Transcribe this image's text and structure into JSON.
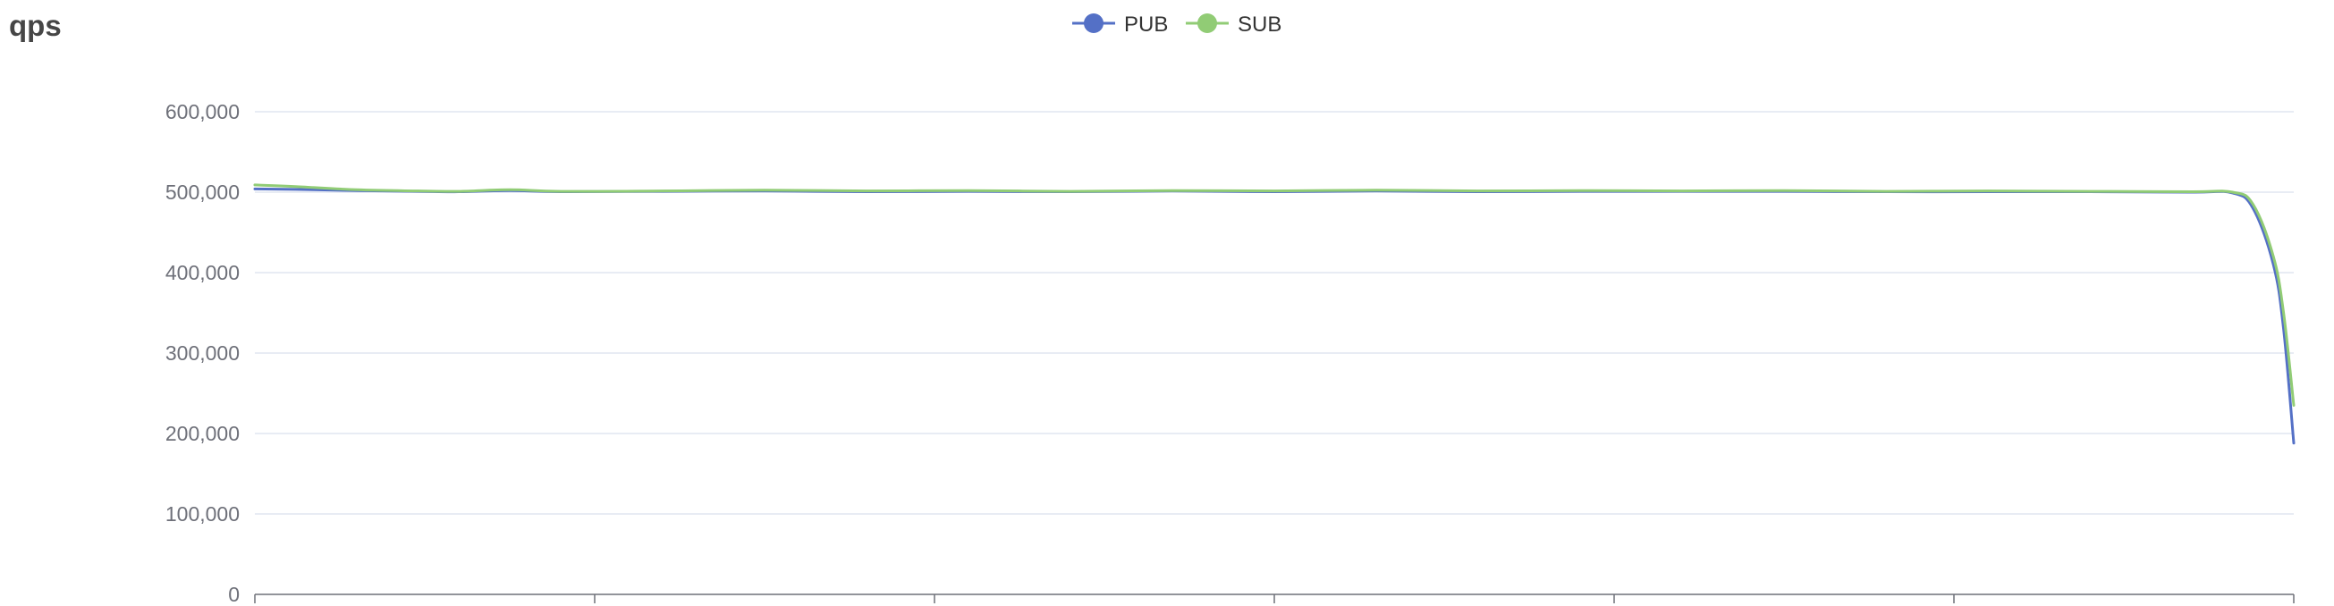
{
  "chart_data": {
    "type": "line",
    "title": "qps",
    "xlabel": "",
    "ylabel": "",
    "ylim": [
      0,
      600000
    ],
    "yticks": [
      "0",
      "100,000",
      "200,000",
      "300,000",
      "400,000",
      "500,000",
      "600,000"
    ],
    "ytick_values": [
      0,
      100000,
      200000,
      300000,
      400000,
      500000,
      600000
    ],
    "x_tick_count": 7,
    "x": [
      0,
      0.02,
      0.05,
      0.08,
      0.1,
      0.125,
      0.15,
      0.2,
      0.25,
      0.3,
      0.35,
      0.4,
      0.45,
      0.5,
      0.55,
      0.6,
      0.65,
      0.7,
      0.75,
      0.8,
      0.85,
      0.9,
      0.95,
      0.97,
      0.98,
      0.99,
      0.995,
      1.0
    ],
    "legend_position": "top-center",
    "grid": true,
    "series": [
      {
        "name": "PUB",
        "color": "#5470c6",
        "values": [
          504000,
          503500,
          502000,
          501000,
          500500,
          502000,
          500500,
          501000,
          501500,
          500500,
          501000,
          500500,
          501500,
          500500,
          501500,
          500500,
          501000,
          501000,
          501000,
          500500,
          500500,
          500500,
          500000,
          499000,
          480000,
          410000,
          330000,
          188000
        ]
      },
      {
        "name": "SUB",
        "color": "#91cc75",
        "values": [
          509000,
          507000,
          503000,
          501500,
          501000,
          503000,
          501000,
          501500,
          502500,
          501500,
          502000,
          501000,
          502000,
          501500,
          502500,
          501500,
          502000,
          501500,
          502000,
          501000,
          501500,
          501000,
          500500,
          500000,
          485000,
          420000,
          350000,
          235000
        ]
      }
    ]
  }
}
